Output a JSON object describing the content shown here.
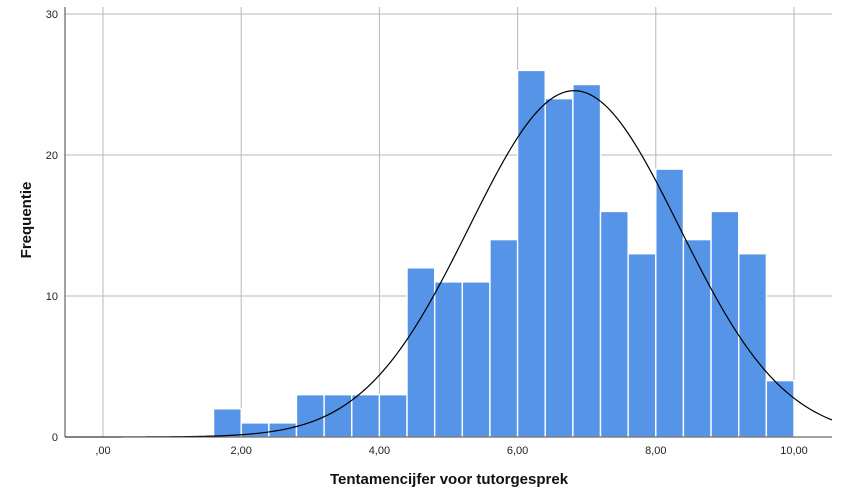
{
  "chart_data": {
    "type": "bar",
    "subtype": "histogram",
    "xlabel": "Tentamencijfer voor tutorgesprek",
    "ylabel": "Frequentie",
    "xlim": [
      -0.55,
      10.55
    ],
    "ylim": [
      0,
      30.5
    ],
    "x_ticks": [
      0,
      2,
      4,
      6,
      8,
      10
    ],
    "x_tick_labels": [
      ",00",
      "2,00",
      "4,00",
      "6,00",
      "8,00",
      "10,00"
    ],
    "y_ticks": [
      0,
      10,
      20,
      30
    ],
    "y_tick_labels": [
      "0",
      "10",
      "20",
      "30"
    ],
    "grid": true,
    "bin_width": 0.4,
    "bins": [
      {
        "start": 1.6,
        "end": 2.0,
        "count": 2
      },
      {
        "start": 2.0,
        "end": 2.4,
        "count": 1
      },
      {
        "start": 2.4,
        "end": 2.8,
        "count": 1
      },
      {
        "start": 2.8,
        "end": 3.2,
        "count": 3
      },
      {
        "start": 3.2,
        "end": 3.6,
        "count": 3
      },
      {
        "start": 3.6,
        "end": 4.0,
        "count": 3
      },
      {
        "start": 4.0,
        "end": 4.4,
        "count": 3
      },
      {
        "start": 4.4,
        "end": 4.8,
        "count": 12
      },
      {
        "start": 4.8,
        "end": 5.2,
        "count": 11
      },
      {
        "start": 5.2,
        "end": 5.6,
        "count": 11
      },
      {
        "start": 5.6,
        "end": 6.0,
        "count": 14
      },
      {
        "start": 6.0,
        "end": 6.4,
        "count": 26
      },
      {
        "start": 6.4,
        "end": 6.8,
        "count": 24
      },
      {
        "start": 6.8,
        "end": 7.2,
        "count": 25
      },
      {
        "start": 7.2,
        "end": 7.6,
        "count": 16
      },
      {
        "start": 7.6,
        "end": 8.0,
        "count": 13
      },
      {
        "start": 8.0,
        "end": 8.4,
        "count": 19
      },
      {
        "start": 8.4,
        "end": 8.8,
        "count": 14
      },
      {
        "start": 8.8,
        "end": 9.2,
        "count": 16
      },
      {
        "start": 9.2,
        "end": 9.6,
        "count": 13
      },
      {
        "start": 9.6,
        "end": 10.0,
        "count": 4
      }
    ],
    "normal_curve": {
      "mean": 6.82,
      "sd": 1.52,
      "n": 234
    },
    "bar_color": "#5594e6",
    "bar_edge_color": "#ffffff",
    "curve_color": "#000000",
    "grid_color": "#b8b8b8"
  }
}
